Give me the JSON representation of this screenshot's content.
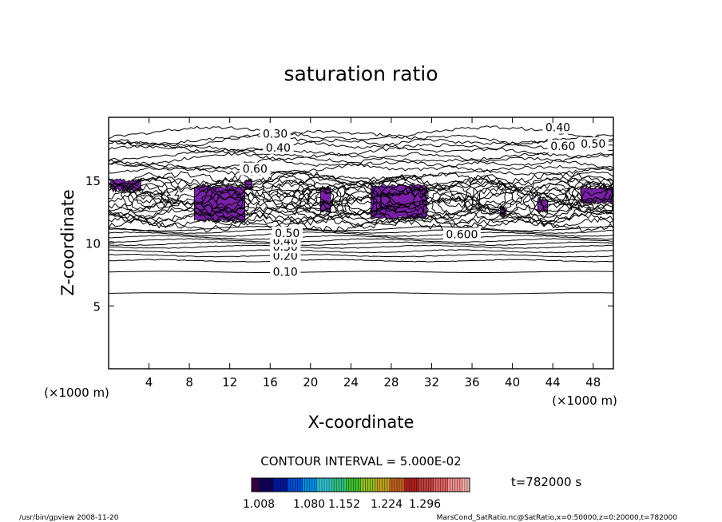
{
  "chart_data": {
    "type": "contour",
    "title": "saturation ratio",
    "xlabel": "X-coordinate",
    "ylabel": "Z-coordinate",
    "x_unit": "(×1000 m)",
    "xlim": [
      0,
      50
    ],
    "ylim": [
      0,
      20
    ],
    "x_ticks": [
      "4",
      "8",
      "12",
      "16",
      "20",
      "24",
      "28",
      "32",
      "36",
      "40",
      "44",
      "48"
    ],
    "y_ticks": [
      "5",
      "10",
      "15"
    ],
    "contour_interval_text": "CONTOUR INTERVAL = 5.000E-02",
    "time_text": "t=782000 s",
    "footer_left": "/usr/bin/gpview  2008-11-20",
    "footer_right": "MarsCond_SatRatio.nc@SatRatio,x=0:50000,z=0:20000,t=782000",
    "shaded_color": "#7a1fa8",
    "contour_labels": [
      {
        "text": "0.10",
        "x": 17.5,
        "z": 7.7
      },
      {
        "text": "0.20",
        "x": 17.5,
        "z": 9.0
      },
      {
        "text": "0.30",
        "x": 17.5,
        "z": 9.7
      },
      {
        "text": "0.40",
        "x": 17.5,
        "z": 10.2
      },
      {
        "text": "0.50",
        "x": 17.7,
        "z": 10.8
      },
      {
        "text": "0.30",
        "x": 16.5,
        "z": 18.7
      },
      {
        "text": "0.40",
        "x": 16.8,
        "z": 17.6
      },
      {
        "text": "0.60",
        "x": 14.5,
        "z": 15.9
      },
      {
        "text": "0.40",
        "x": 44.5,
        "z": 19.2
      },
      {
        "text": "0.60",
        "x": 45.0,
        "z": 17.7
      },
      {
        "text": "0.50",
        "x": 48.0,
        "z": 17.9
      },
      {
        "text": "0.600",
        "x": 35.0,
        "z": 10.7
      }
    ],
    "colorbar": {
      "tick_labels": [
        "1.008",
        "1.080",
        "1.152",
        "1.224",
        "1.296"
      ],
      "colors": [
        "#3a0040",
        "#10005a",
        "#0018a0",
        "#0050d8",
        "#0090e8",
        "#30c0d0",
        "#30c080",
        "#40c030",
        "#90c020",
        "#c0a020",
        "#c06020",
        "#b02020",
        "#c04040",
        "#e06060",
        "#f09090",
        "#f0b0b0"
      ]
    }
  }
}
